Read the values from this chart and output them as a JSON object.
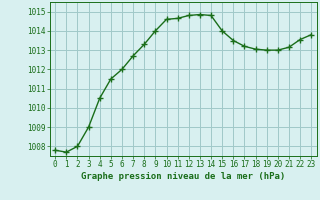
{
  "x": [
    0,
    1,
    2,
    3,
    4,
    5,
    6,
    7,
    8,
    9,
    10,
    11,
    12,
    13,
    14,
    15,
    16,
    17,
    18,
    19,
    20,
    21,
    22,
    23
  ],
  "y": [
    1007.8,
    1007.7,
    1008.0,
    1009.0,
    1010.5,
    1011.5,
    1012.0,
    1012.7,
    1013.3,
    1014.0,
    1014.6,
    1014.65,
    1014.8,
    1014.85,
    1014.8,
    1014.0,
    1013.5,
    1013.2,
    1013.05,
    1013.0,
    1013.0,
    1013.15,
    1013.55,
    1013.8
  ],
  "line_color": "#1a6e1a",
  "marker": "+",
  "marker_size": 4,
  "bg_color": "#d8f0f0",
  "grid_color": "#a0c8c8",
  "xlabel": "Graphe pression niveau de la mer (hPa)",
  "xlabel_color": "#1a6e1a",
  "tick_color": "#1a6e1a",
  "ylim": [
    1007.5,
    1015.5
  ],
  "yticks": [
    1008,
    1009,
    1010,
    1011,
    1012,
    1013,
    1014,
    1015
  ],
  "xlim": [
    -0.5,
    23.5
  ],
  "xticks": [
    0,
    1,
    2,
    3,
    4,
    5,
    6,
    7,
    8,
    9,
    10,
    11,
    12,
    13,
    14,
    15,
    16,
    17,
    18,
    19,
    20,
    21,
    22,
    23
  ],
  "line_width": 1.0,
  "marker_color": "#1a6e1a",
  "tick_fontsize": 5.5,
  "xlabel_fontsize": 6.5
}
